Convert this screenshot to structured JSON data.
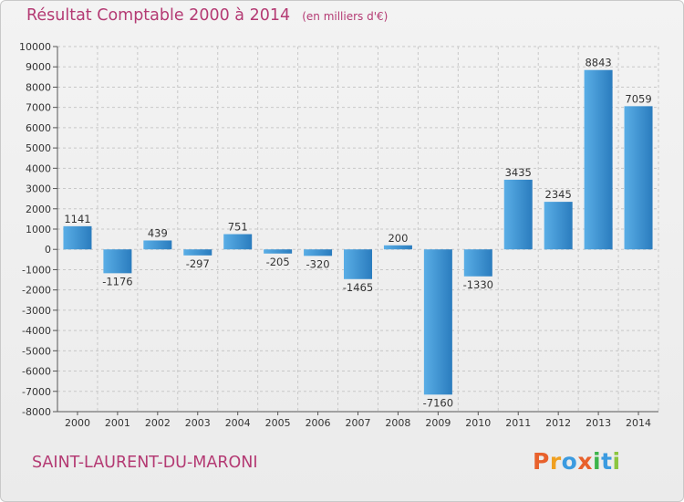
{
  "chart_data": {
    "type": "bar",
    "title": "Résultat Comptable 2000 à 2014",
    "unit": "(en milliers d'€)",
    "categories": [
      "2000",
      "2001",
      "2002",
      "2003",
      "2004",
      "2005",
      "2006",
      "2007",
      "2008",
      "2009",
      "2010",
      "2011",
      "2012",
      "2013",
      "2014"
    ],
    "values": [
      1141,
      -1176,
      439,
      -297,
      751,
      -205,
      -320,
      -1465,
      200,
      -7160,
      -1330,
      3435,
      2345,
      8843,
      7059
    ],
    "ylim": [
      -8000,
      10000
    ],
    "yticks": [
      10000,
      9000,
      8000,
      7000,
      6000,
      5000,
      4000,
      3000,
      2000,
      1000,
      0,
      -1000,
      -2000,
      -3000,
      -4000,
      -5000,
      -6000,
      -7000,
      -8000
    ],
    "ytick_labels": [
      "10000",
      "9000",
      "8000",
      "7000",
      "6000",
      "5000",
      "4000",
      "3000",
      "2000",
      "1000",
      "0",
      "-1000",
      "-2000",
      "-3000",
      "-4000",
      "-5000",
      "-6000",
      "-7000",
      "-8000"
    ],
    "data_labels": [
      "1141",
      "-1176",
      "439",
      "-297",
      "751",
      "-205",
      "-320",
      "-1465",
      "200",
      "-7160",
      "-1330",
      "3435",
      "2345",
      "8843",
      "7059"
    ],
    "grid": true,
    "xlabel": "",
    "ylabel": "",
    "bar_color_light": "#5aaee6",
    "bar_color_dark": "#2a7cbe"
  },
  "footer": {
    "commune": "SAINT-LAURENT-DU-MARONI",
    "logo_letters": [
      "P",
      "r",
      "o",
      "x",
      "i",
      "t",
      "i"
    ],
    "logo_colors": [
      "#e8612c",
      "#f0a020",
      "#3b9be0",
      "#e8612c",
      "#3cb44b",
      "#3b9be0",
      "#8cc63f"
    ]
  },
  "colors": {
    "title": "#b43a73",
    "background": "#efefef"
  }
}
